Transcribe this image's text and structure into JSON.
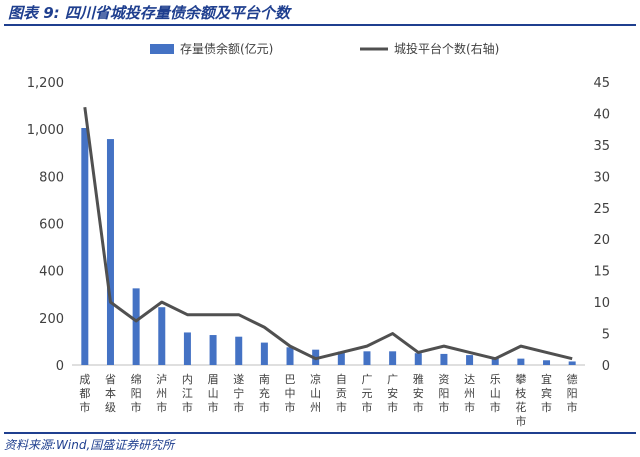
{
  "title": "图表 9:  四川省城投存量债余额及平台个数",
  "source": "资料来源:Wind,国盛证券研究所",
  "colors": {
    "bar": "#4472c4",
    "line": "#505050",
    "title": "#1f3f8f"
  },
  "chart_data": {
    "type": "bar",
    "categories": [
      "成都市",
      "省本级",
      "绵阳市",
      "泸州市",
      "内江市",
      "眉山市",
      "遂宁市",
      "南充市",
      "巴中市",
      "凉山州",
      "自贡市",
      "广元市",
      "广安市",
      "雅安市",
      "资阳市",
      "达州市",
      "乐山市",
      "攀枝花市",
      "宜宾市",
      "德阳市"
    ],
    "category_labels": [
      [
        "成",
        "都",
        "市"
      ],
      [
        "省",
        "本",
        "级"
      ],
      [
        "绵",
        "阳",
        "市"
      ],
      [
        "泸",
        "州",
        "市"
      ],
      [
        "内",
        "江",
        "市"
      ],
      [
        "眉",
        "山",
        "市"
      ],
      [
        "遂",
        "宁",
        "市"
      ],
      [
        "南",
        "充",
        "市"
      ],
      [
        "巴",
        "中",
        "市"
      ],
      [
        "凉",
        "山",
        "州"
      ],
      [
        "自",
        "贡",
        "市"
      ],
      [
        "广",
        "元",
        "市"
      ],
      [
        "广",
        "安",
        "市"
      ],
      [
        "雅",
        "安",
        "市"
      ],
      [
        "资",
        "阳",
        "市"
      ],
      [
        "达",
        "州",
        "市"
      ],
      [
        "乐",
        "山",
        "市"
      ],
      [
        "攀",
        "枝",
        "花",
        "市"
      ],
      [
        "宜",
        "宾",
        "市"
      ],
      [
        "德",
        "阳",
        "市"
      ]
    ],
    "series": [
      {
        "name": "存量债余额(亿元)",
        "type": "bar",
        "axis": "left",
        "values": [
          1005,
          958,
          325,
          245,
          138,
          127,
          120,
          95,
          75,
          65,
          57,
          58,
          58,
          50,
          47,
          42,
          33,
          27,
          20,
          15
        ]
      },
      {
        "name": "城投平台个数(右轴)",
        "type": "line",
        "axis": "right",
        "values": [
          41,
          10,
          7,
          10,
          8,
          8,
          8,
          6,
          3,
          1,
          2,
          3,
          5,
          2,
          3,
          2,
          1,
          3,
          2,
          1
        ]
      }
    ],
    "y_left": {
      "min": 0,
      "max": 1200,
      "ticks": [
        "0",
        "200",
        "400",
        "600",
        "800",
        "1,000",
        "1,200"
      ]
    },
    "y_right": {
      "min": 0,
      "max": 45,
      "ticks": [
        "0",
        "5",
        "10",
        "15",
        "20",
        "25",
        "30",
        "35",
        "40",
        "45"
      ]
    },
    "legend_position": "top",
    "grid": false
  }
}
